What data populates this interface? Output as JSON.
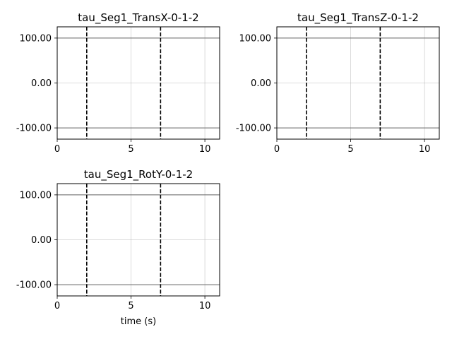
{
  "chart_data": [
    {
      "type": "line",
      "title": "tau_Seg1_TransX-0-1-2",
      "xlabel": "",
      "ylabel": "",
      "xlim": [
        0,
        11
      ],
      "ylim": [
        -125,
        125
      ],
      "xticks": [
        0,
        5,
        10
      ],
      "xtick_labels": [
        "0",
        "5",
        "10"
      ],
      "yticks": [
        -100,
        0,
        100
      ],
      "ytick_labels": [
        "-100.00",
        "0.00",
        "100.00"
      ],
      "grid": true,
      "series": [],
      "limit_lines_y": [
        100,
        -100
      ],
      "vertical_dashed_x": [
        2,
        7
      ]
    },
    {
      "type": "line",
      "title": "tau_Seg1_TransZ-0-1-2",
      "xlabel": "",
      "ylabel": "",
      "xlim": [
        0,
        11
      ],
      "ylim": [
        -125,
        125
      ],
      "xticks": [
        0,
        5,
        10
      ],
      "xtick_labels": [
        "0",
        "5",
        "10"
      ],
      "yticks": [
        -100,
        0,
        100
      ],
      "ytick_labels": [
        "-100.00",
        "0.00",
        "100.00"
      ],
      "grid": true,
      "series": [],
      "limit_lines_y": [
        100,
        -100
      ],
      "vertical_dashed_x": [
        2,
        7
      ]
    },
    {
      "type": "line",
      "title": "tau_Seg1_RotY-0-1-2",
      "xlabel": "time (s)",
      "ylabel": "",
      "xlim": [
        0,
        11
      ],
      "ylim": [
        -125,
        125
      ],
      "xticks": [
        0,
        5,
        10
      ],
      "xtick_labels": [
        "0",
        "5",
        "10"
      ],
      "yticks": [
        -100,
        0,
        100
      ],
      "ytick_labels": [
        "-100.00",
        "0.00",
        "100.00"
      ],
      "grid": true,
      "series": [],
      "limit_lines_y": [
        100,
        -100
      ],
      "vertical_dashed_x": [
        2,
        7
      ]
    }
  ]
}
